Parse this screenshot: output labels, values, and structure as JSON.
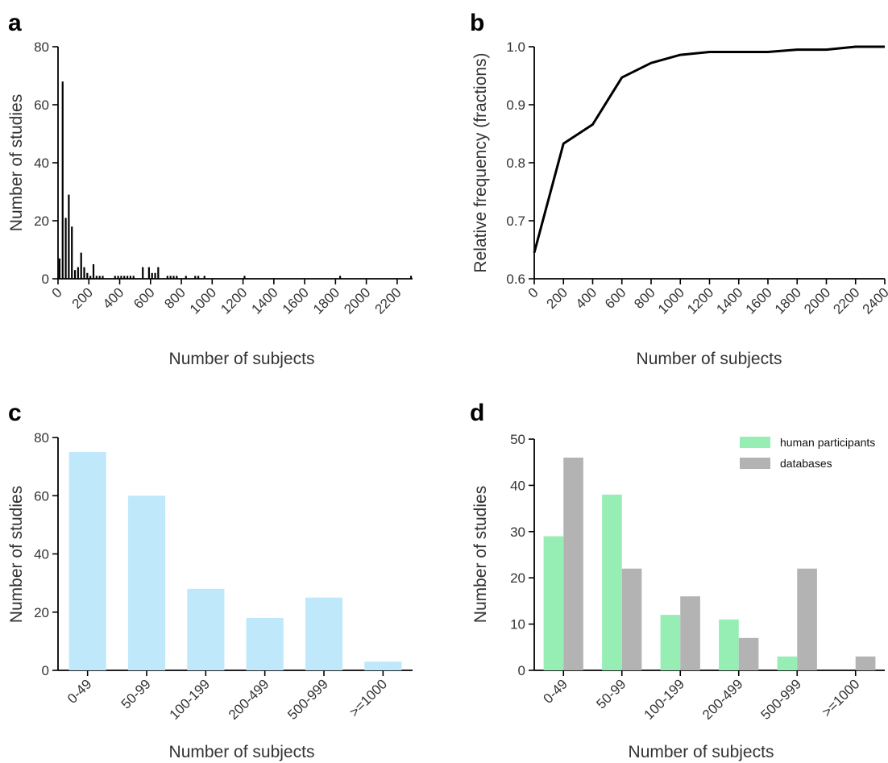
{
  "chart_data": [
    {
      "panel": "a",
      "type": "bar",
      "xlabel": "Number of subjects",
      "ylabel": "Number of studies",
      "xlim": [
        0,
        2300
      ],
      "ylim": [
        0,
        80
      ],
      "xticks": [
        "0",
        "200",
        "400",
        "600",
        "800",
        "1000",
        "1200",
        "1400",
        "1600",
        "1800",
        "2000",
        "2200"
      ],
      "yticks": [
        "0",
        "20",
        "40",
        "60",
        "80"
      ],
      "color": "#000000",
      "bin_width": 10,
      "bins": [
        {
          "x": 10,
          "y": 7
        },
        {
          "x": 30,
          "y": 68
        },
        {
          "x": 50,
          "y": 21
        },
        {
          "x": 70,
          "y": 29
        },
        {
          "x": 90,
          "y": 18
        },
        {
          "x": 110,
          "y": 3
        },
        {
          "x": 130,
          "y": 4
        },
        {
          "x": 150,
          "y": 9
        },
        {
          "x": 170,
          "y": 4
        },
        {
          "x": 190,
          "y": 2
        },
        {
          "x": 210,
          "y": 1
        },
        {
          "x": 230,
          "y": 5
        },
        {
          "x": 250,
          "y": 1
        },
        {
          "x": 270,
          "y": 1
        },
        {
          "x": 290,
          "y": 1
        },
        {
          "x": 370,
          "y": 1
        },
        {
          "x": 390,
          "y": 1
        },
        {
          "x": 410,
          "y": 1
        },
        {
          "x": 430,
          "y": 1
        },
        {
          "x": 450,
          "y": 1
        },
        {
          "x": 470,
          "y": 1
        },
        {
          "x": 490,
          "y": 1
        },
        {
          "x": 550,
          "y": 4
        },
        {
          "x": 590,
          "y": 4
        },
        {
          "x": 610,
          "y": 2
        },
        {
          "x": 630,
          "y": 2
        },
        {
          "x": 650,
          "y": 4
        },
        {
          "x": 710,
          "y": 1
        },
        {
          "x": 730,
          "y": 1
        },
        {
          "x": 750,
          "y": 1
        },
        {
          "x": 770,
          "y": 1
        },
        {
          "x": 830,
          "y": 1
        },
        {
          "x": 890,
          "y": 1
        },
        {
          "x": 910,
          "y": 1
        },
        {
          "x": 950,
          "y": 1
        },
        {
          "x": 1210,
          "y": 1
        },
        {
          "x": 1830,
          "y": 1
        },
        {
          "x": 2290,
          "y": 1
        }
      ]
    },
    {
      "panel": "b",
      "type": "line",
      "xlabel": "Number of subjects",
      "ylabel": "Relative frequency (fractions)",
      "xlim": [
        0,
        2400
      ],
      "ylim": [
        0.6,
        1.0
      ],
      "xticks": [
        "0",
        "200",
        "400",
        "600",
        "800",
        "1000",
        "1200",
        "1400",
        "1600",
        "1800",
        "2000",
        "2200",
        "2400"
      ],
      "yticks": [
        "0.6",
        "0.7",
        "0.8",
        "0.9",
        "1.0"
      ],
      "color": "#000000",
      "x": [
        0,
        200,
        400,
        600,
        800,
        1000,
        1200,
        1400,
        1600,
        1800,
        2000,
        2200,
        2400
      ],
      "y": [
        0.645,
        0.833,
        0.866,
        0.947,
        0.972,
        0.986,
        0.991,
        0.991,
        0.991,
        0.995,
        0.995,
        1.0,
        1.0
      ]
    },
    {
      "panel": "c",
      "type": "bar",
      "xlabel": "Number of subjects",
      "ylabel": "Number of studies",
      "ylim": [
        0,
        80
      ],
      "yticks": [
        "0",
        "20",
        "40",
        "60",
        "80"
      ],
      "categories": [
        "0-49",
        "50-99",
        "100-199",
        "200-499",
        "500-999",
        ">=1000"
      ],
      "values": [
        75,
        60,
        28,
        18,
        25,
        3
      ],
      "color": "#bfe9fb"
    },
    {
      "panel": "d",
      "type": "bar",
      "xlabel": "Number of subjects",
      "ylabel": "Number of studies",
      "ylim": [
        0,
        50
      ],
      "yticks": [
        "0",
        "10",
        "20",
        "30",
        "40",
        "50"
      ],
      "categories": [
        "0-49",
        "50-99",
        "100-199",
        "200-499",
        "500-999",
        ">=1000"
      ],
      "legend": "top-right",
      "series": [
        {
          "name": "human participants",
          "values": [
            29,
            38,
            12,
            11,
            3,
            0
          ],
          "color": "#97eeb5"
        },
        {
          "name": "databases",
          "values": [
            46,
            22,
            16,
            7,
            22,
            3
          ],
          "color": "#b3b3b3"
        }
      ]
    }
  ]
}
